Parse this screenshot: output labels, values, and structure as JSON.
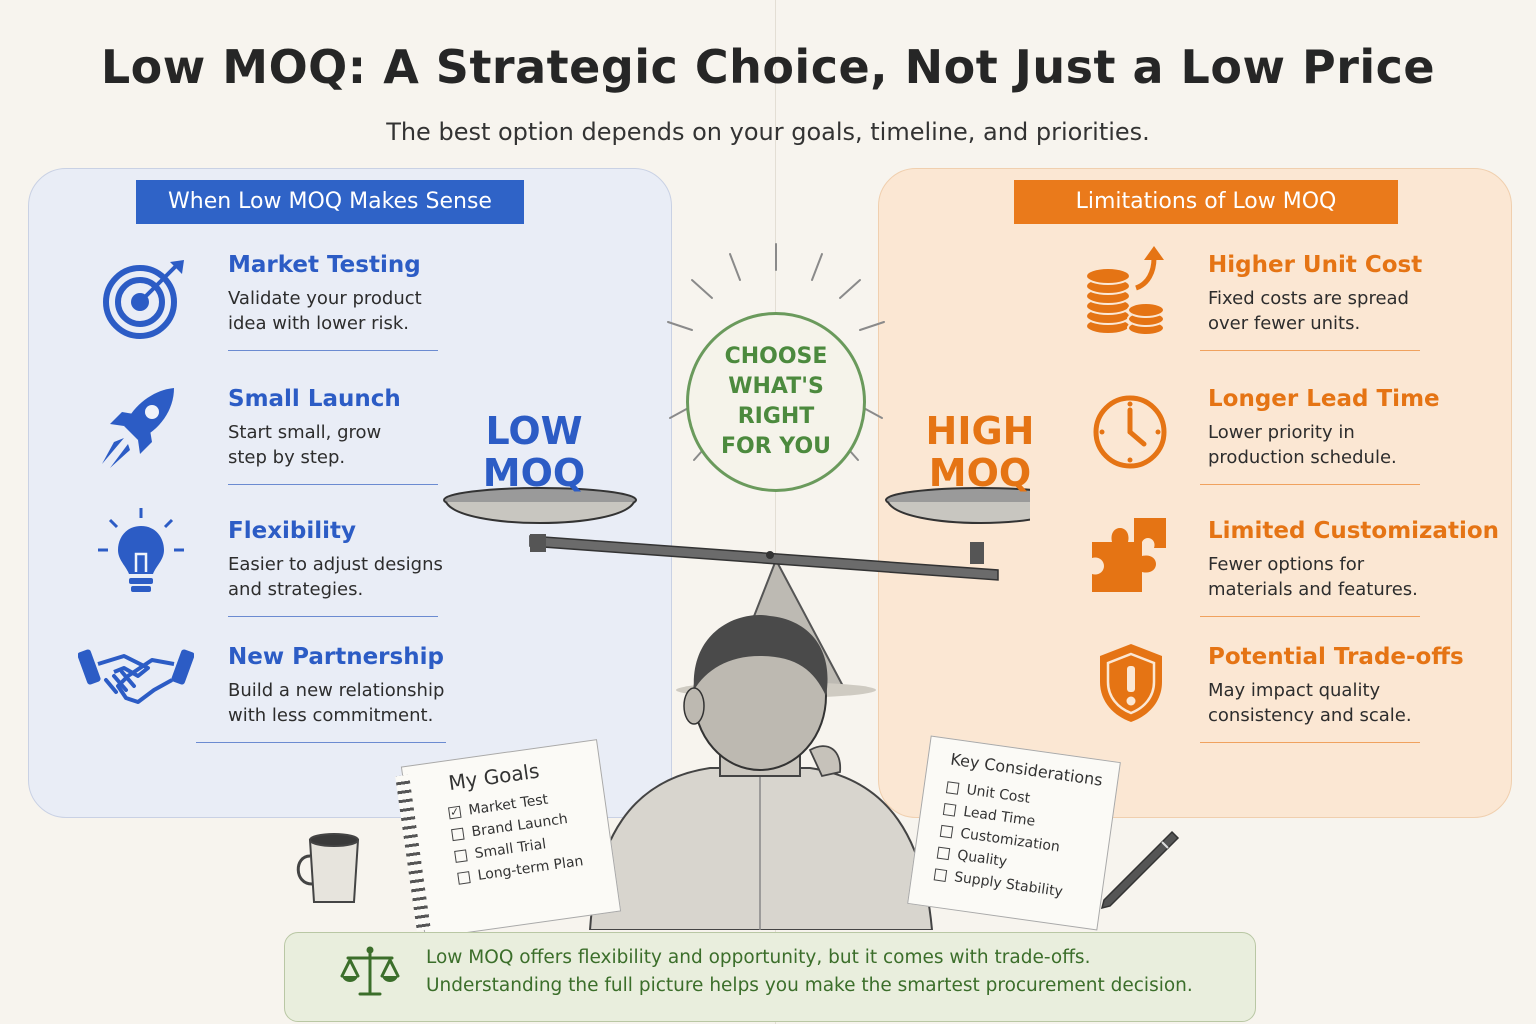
{
  "title": "Low MOQ: A Strategic Choice, Not Just a Low Price",
  "subtitle": "The best option depends on your goals, timeline, and priorities.",
  "left_panel": {
    "banner": "When Low MOQ Makes Sense",
    "items": [
      {
        "icon": "target-icon",
        "title": "Market Testing",
        "desc": "Validate your product idea with lower risk."
      },
      {
        "icon": "rocket-icon",
        "title": "Small Launch",
        "desc": "Start small, grow step by step."
      },
      {
        "icon": "lightbulb-icon",
        "title": "Flexibility",
        "desc": "Easier to adjust designs and strategies."
      },
      {
        "icon": "handshake-icon",
        "title": "New Partnership",
        "desc": "Build a new relationship with less commitment."
      }
    ]
  },
  "right_panel": {
    "banner": "Limitations of Low MOQ",
    "items": [
      {
        "icon": "coins-arrow-icon",
        "title": "Higher Unit Cost",
        "desc": "Fixed costs are spread over fewer units."
      },
      {
        "icon": "clock-icon",
        "title": "Longer Lead Time",
        "desc": "Lower priority in production schedule."
      },
      {
        "icon": "puzzle-icon",
        "title": "Limited Customization",
        "desc": "Fewer options for materials and features."
      },
      {
        "icon": "shield-alert-icon",
        "title": "Potential Trade-offs",
        "desc": "May impact quality consistency and scale."
      }
    ]
  },
  "scale": {
    "left_label_1": "LOW",
    "left_label_2": "MOQ",
    "right_label_1": "HIGH",
    "right_label_2": "MOQ",
    "center_line_1": "CHOOSE",
    "center_line_2": "WHAT'S",
    "center_line_3": "RIGHT",
    "center_line_4": "FOR YOU"
  },
  "my_goals": {
    "title": "My Goals",
    "items": [
      {
        "label": "Market Test",
        "checked": true
      },
      {
        "label": "Brand Launch",
        "checked": false
      },
      {
        "label": "Small Trial",
        "checked": false
      },
      {
        "label": "Long-term Plan",
        "checked": false
      }
    ]
  },
  "key_considerations": {
    "title": "Key Considerations",
    "items": [
      "Unit Cost",
      "Lead Time",
      "Customization",
      "Quality",
      "Supply Stability"
    ]
  },
  "footer": {
    "line1": "Low MOQ offers flexibility and opportunity, but it comes with trade-offs.",
    "line2": "Understanding the full picture helps you make the smartest procurement decision."
  },
  "colors": {
    "blue": "#2c5cc5",
    "orange": "#e57414",
    "green": "#4c8a3e",
    "background": "#f7f4ee"
  }
}
